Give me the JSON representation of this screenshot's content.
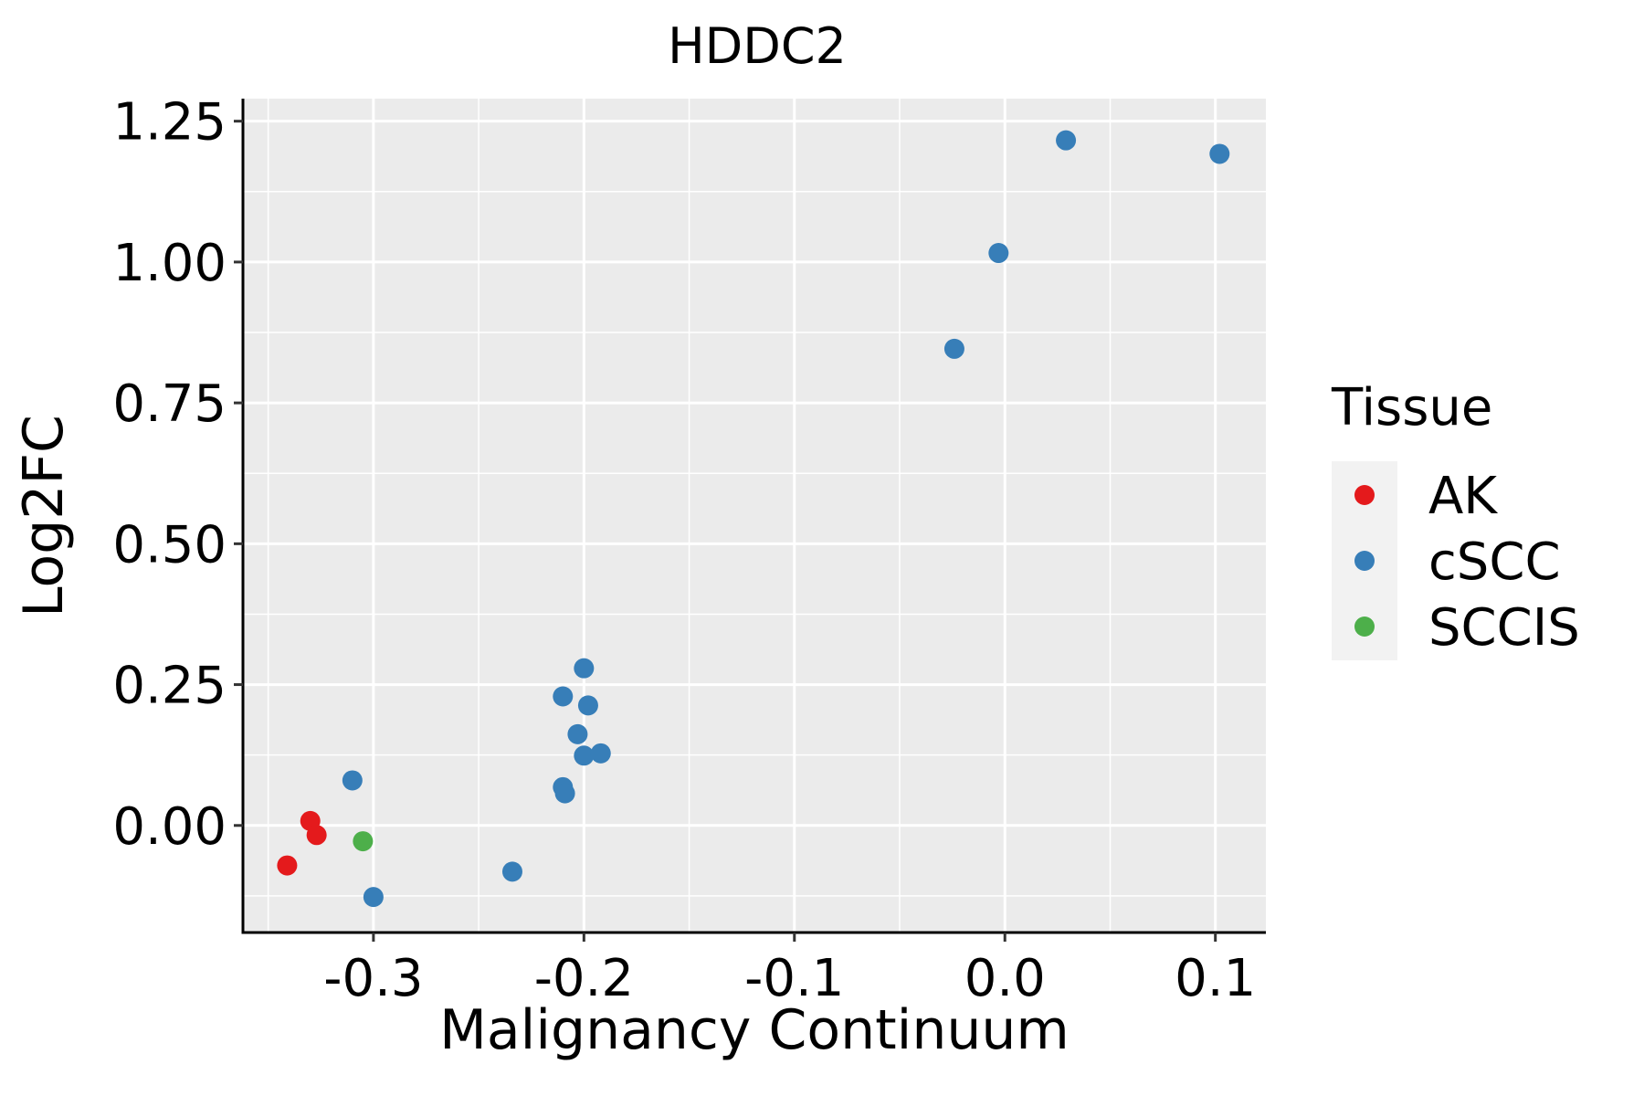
{
  "chart_data": {
    "type": "scatter",
    "title": "HDDC2",
    "xlabel": "Malignancy Continuum",
    "ylabel": "Log2FC",
    "xlim": [
      -0.362,
      0.124
    ],
    "ylim": [
      -0.19,
      1.29
    ],
    "x_ticks": [
      -0.3,
      -0.2,
      -0.1,
      0.0,
      0.1
    ],
    "x_tick_labels": [
      "-0.3",
      "-0.2",
      "-0.1",
      "0.0",
      "0.1"
    ],
    "y_ticks": [
      0.0,
      0.25,
      0.5,
      0.75,
      1.0,
      1.25
    ],
    "y_tick_labels": [
      "0.00",
      "0.25",
      "0.50",
      "0.75",
      "1.00",
      "1.25"
    ],
    "grid": true,
    "legend": {
      "title": "Tissue",
      "position": "right",
      "entries": [
        {
          "label": "AK",
          "color": "#E41A1C"
        },
        {
          "label": "cSCC",
          "color": "#377EB8"
        },
        {
          "label": "SCCIS",
          "color": "#4DAF4A"
        }
      ]
    },
    "series": [
      {
        "name": "AK",
        "color": "#E41A1C",
        "points": [
          {
            "x": -0.341,
            "y": -0.071
          },
          {
            "x": -0.33,
            "y": 0.008
          },
          {
            "x": -0.327,
            "y": -0.017
          }
        ]
      },
      {
        "name": "cSCC",
        "color": "#377EB8",
        "points": [
          {
            "x": -0.31,
            "y": 0.08
          },
          {
            "x": -0.3,
            "y": -0.127
          },
          {
            "x": -0.234,
            "y": -0.082
          },
          {
            "x": -0.21,
            "y": 0.068
          },
          {
            "x": -0.209,
            "y": 0.057
          },
          {
            "x": -0.21,
            "y": 0.229
          },
          {
            "x": -0.203,
            "y": 0.162
          },
          {
            "x": -0.2,
            "y": 0.124
          },
          {
            "x": -0.2,
            "y": 0.279
          },
          {
            "x": -0.198,
            "y": 0.213
          },
          {
            "x": -0.192,
            "y": 0.128
          },
          {
            "x": -0.024,
            "y": 0.846
          },
          {
            "x": -0.003,
            "y": 1.016
          },
          {
            "x": 0.029,
            "y": 1.216
          },
          {
            "x": 0.102,
            "y": 1.192
          }
        ]
      },
      {
        "name": "SCCIS",
        "color": "#4DAF4A",
        "points": [
          {
            "x": -0.305,
            "y": -0.028
          }
        ]
      }
    ]
  }
}
